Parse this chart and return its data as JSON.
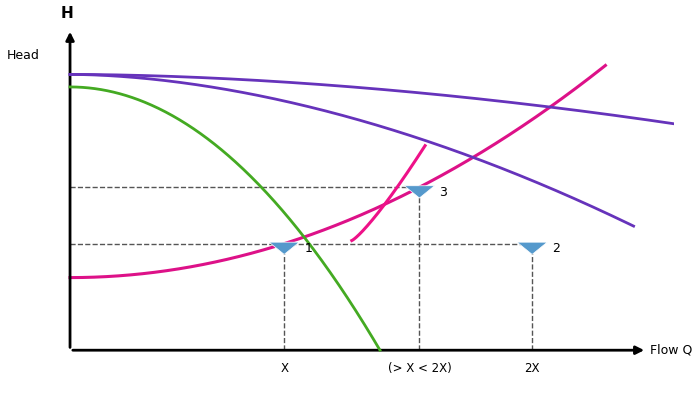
{
  "bg_color": "#ffffff",
  "xlabel": "Flow Q",
  "ylabel_h": "H",
  "ylabel_head": "Head",
  "pump1_color": "#6633bb",
  "pump2_color": "#44aa22",
  "system_color": "#dd1188",
  "steep_color": "#ee1188",
  "point1": [
    0.38,
    0.34
  ],
  "point2": [
    0.82,
    0.34
  ],
  "point3": [
    0.62,
    0.52
  ],
  "xtick_labels": [
    "X",
    "(> X < 2X)",
    "2X"
  ],
  "xtick_pos": [
    0.38,
    0.62,
    0.82
  ],
  "triangle_color": "#5599cc"
}
